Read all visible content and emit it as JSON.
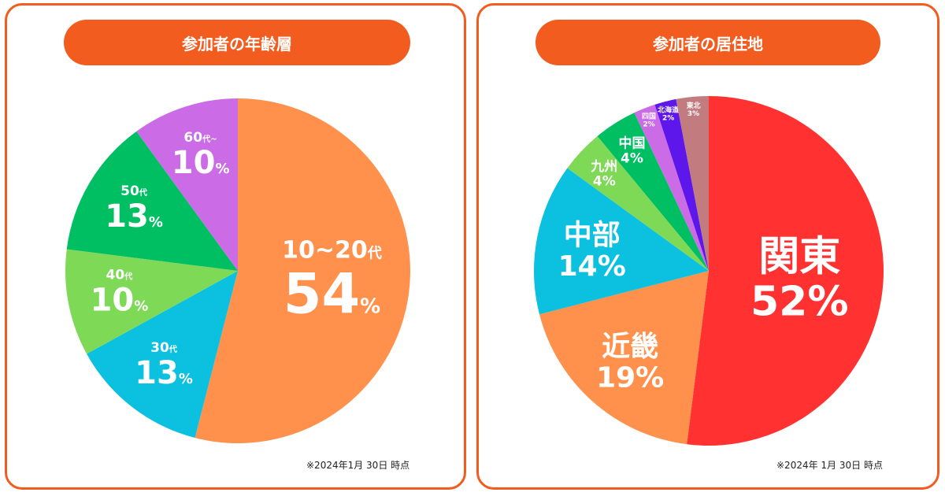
{
  "chart_data": [
    {
      "type": "pie",
      "title": "参加者の年齢層",
      "note": "※2024年1月 30日 時点",
      "slices": [
        {
          "label": "10~20",
          "suffix": "代",
          "value": 54,
          "color": "#ff914d"
        },
        {
          "label": "30",
          "suffix": "代",
          "value": 13,
          "color": "#0cc0df"
        },
        {
          "label": "40",
          "suffix": "代",
          "value": 10,
          "color": "#7ed957"
        },
        {
          "label": "50",
          "suffix": "代",
          "value": 13,
          "color": "#00bf63"
        },
        {
          "label": "60",
          "suffix": "代~",
          "value": 10,
          "color": "#cb6ce6"
        }
      ]
    },
    {
      "type": "pie",
      "title": "参加者の居住地",
      "note": "※2024年 1月 30日 時点",
      "slices": [
        {
          "label": "関東",
          "value": 52,
          "color": "#ff3131"
        },
        {
          "label": "近畿",
          "value": 19,
          "color": "#ff914d"
        },
        {
          "label": "中部",
          "value": 14,
          "color": "#0cc0df"
        },
        {
          "label": "九州",
          "value": 4,
          "color": "#7ed957"
        },
        {
          "label": "中国",
          "value": 4,
          "color": "#00bf63"
        },
        {
          "label": "四国",
          "value": 2,
          "color": "#cb6ce6"
        },
        {
          "label": "北海道",
          "value": 2,
          "color": "#5e17eb"
        },
        {
          "label": "東北",
          "value": 3,
          "color": "#c27b7f"
        }
      ]
    }
  ]
}
